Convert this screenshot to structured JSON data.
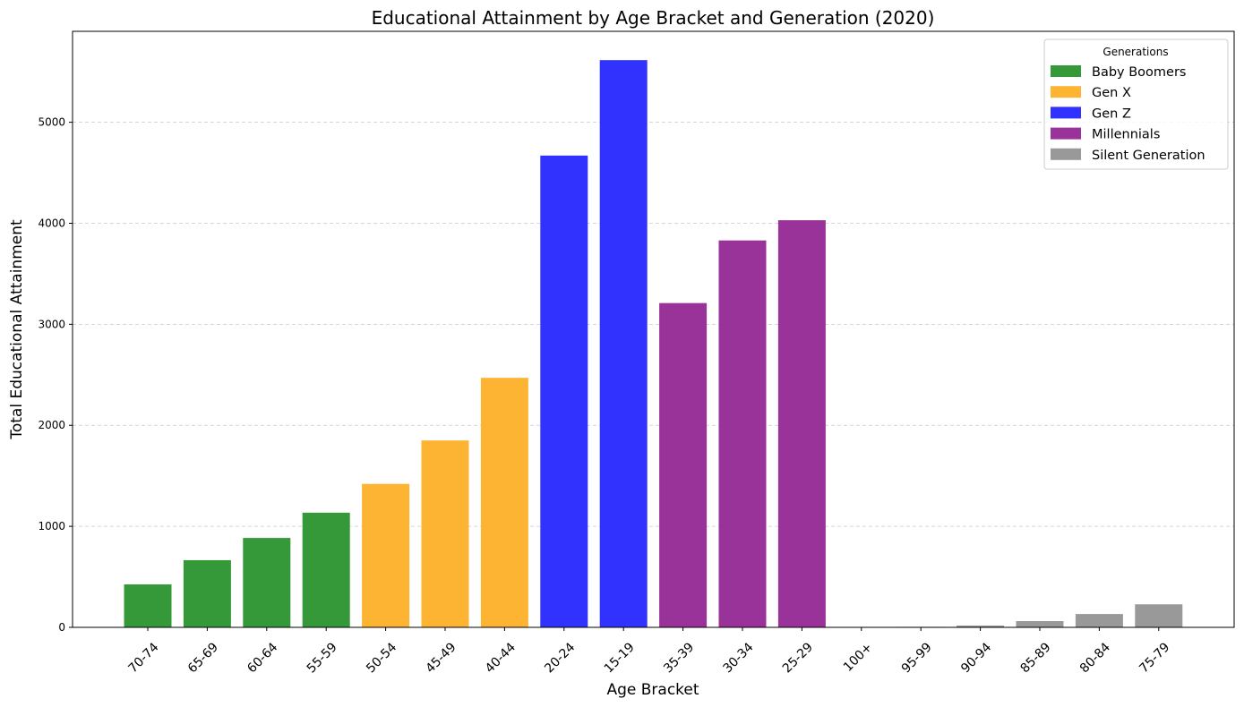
{
  "chart_data": {
    "type": "bar",
    "title": "Educational Attainment by Age Bracket and Generation (2020)",
    "xlabel": "Age Bracket",
    "ylabel": "Total Educational Attainment",
    "ylim": [
      0,
      5900
    ],
    "yticks": [
      0,
      1000,
      2000,
      3000,
      4000,
      5000
    ],
    "grid": "y-dashed",
    "legend_title": "Generations",
    "legend_placement": "top-right",
    "categories": [
      "70-74",
      "65-69",
      "60-64",
      "55-59",
      "50-54",
      "45-49",
      "40-44",
      "20-24",
      "15-19",
      "35-39",
      "30-34",
      "25-29",
      "100+",
      "95-99",
      "90-94",
      "85-89",
      "80-84",
      "75-79"
    ],
    "values": [
      425,
      665,
      885,
      1135,
      1420,
      1850,
      2470,
      4670,
      5615,
      3210,
      3830,
      4030,
      2,
      5,
      18,
      62,
      132,
      228
    ],
    "bar_generation": [
      "Baby Boomers",
      "Baby Boomers",
      "Baby Boomers",
      "Baby Boomers",
      "Gen X",
      "Gen X",
      "Gen X",
      "Gen Z",
      "Gen Z",
      "Millennials",
      "Millennials",
      "Millennials",
      "Silent Generation",
      "Silent Generation",
      "Silent Generation",
      "Silent Generation",
      "Silent Generation",
      "Silent Generation"
    ],
    "series": [
      {
        "name": "Baby Boomers",
        "color": "#35993a"
      },
      {
        "name": "Gen X",
        "color": "#feb433"
      },
      {
        "name": "Gen Z",
        "color": "#3232fe"
      },
      {
        "name": "Millennials",
        "color": "#993399"
      },
      {
        "name": "Silent Generation",
        "color": "#999999"
      }
    ]
  }
}
